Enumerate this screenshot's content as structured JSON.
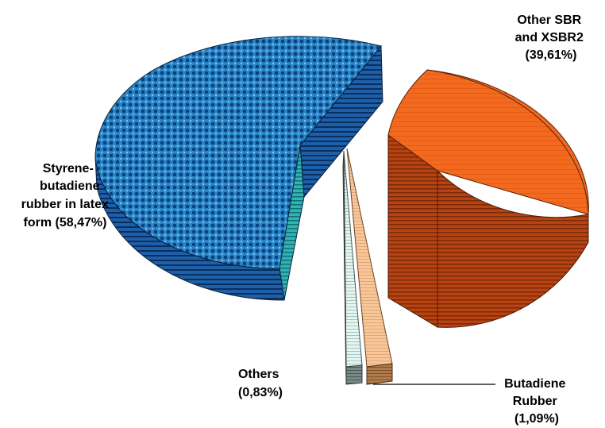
{
  "chart_data": {
    "type": "pie",
    "style": "3d-exploded",
    "title": "",
    "slices": [
      {
        "label_lines": [
          "Styrene-",
          "butadiene",
          "rubber in latex",
          "form (58,47%)"
        ],
        "value": 58.47,
        "color": "#2a86c8"
      },
      {
        "label_lines": [
          "Other SBR",
          "and XSBR2",
          "(39,61%)"
        ],
        "value": 39.61,
        "color": "#f26a1f"
      },
      {
        "label_lines": [
          "Butadiene",
          "Rubber",
          "(1,09%)"
        ],
        "value": 1.09,
        "color": "#f6c79a"
      },
      {
        "label_lines": [
          "Others",
          "(0,83%)"
        ],
        "value": 0.83,
        "color": "#cfe6e6"
      }
    ],
    "legend": "none"
  }
}
